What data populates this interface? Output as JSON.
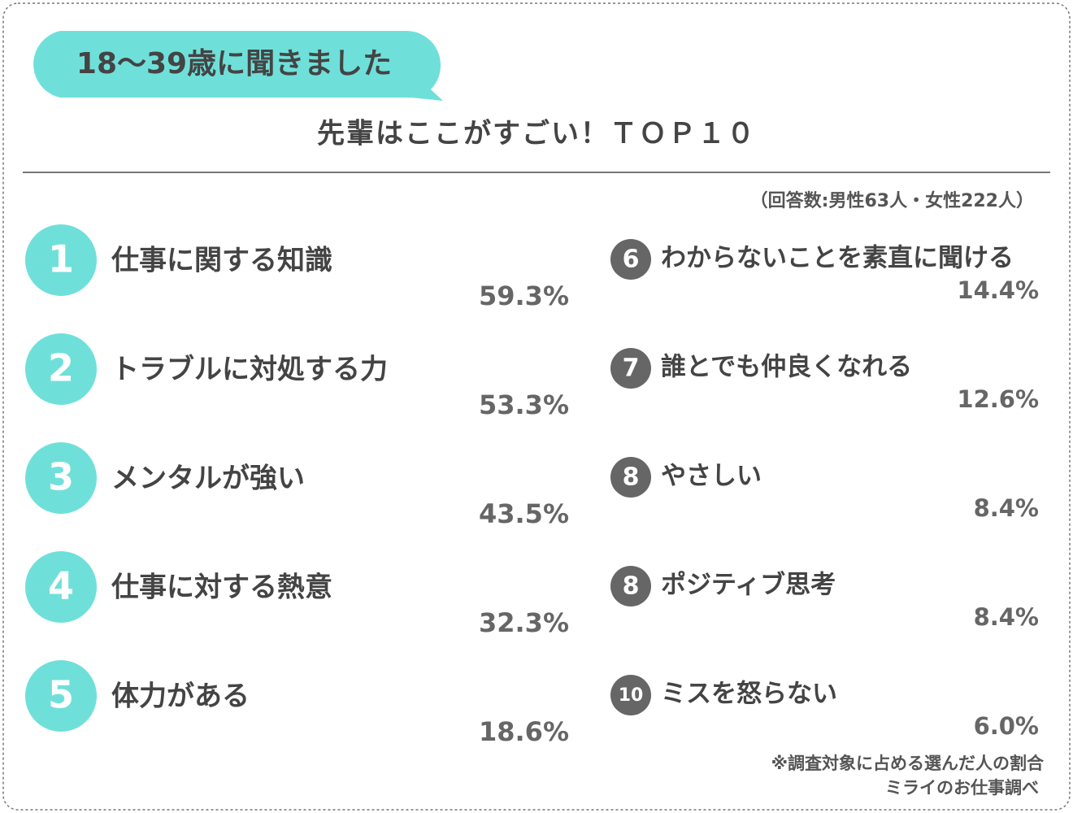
{
  "header": {
    "badge": "18〜39歳に聞きました",
    "title": "先輩はここがすごい！ＴＯＰ１０",
    "note": "（回答数:男性63人・女性222人）"
  },
  "left_items": [
    {
      "rank": 1,
      "label": "仕事に関する知識",
      "value": "59.3%"
    },
    {
      "rank": 2,
      "label": "トラブルに対処する力",
      "value": "53.3%"
    },
    {
      "rank": 3,
      "label": "メンタルが強い",
      "value": "43.5%"
    },
    {
      "rank": 4,
      "label": "仕事に対する熱意",
      "value": "32.3%"
    },
    {
      "rank": 5,
      "label": "体力がある",
      "value": "18.6%"
    }
  ],
  "right_items": [
    {
      "rank": 6,
      "label": "わからないことを素直に聞ける",
      "value": "14.4%"
    },
    {
      "rank": 7,
      "label": "誰とでも仲良くなれる",
      "value": "12.6%"
    },
    {
      "rank": 8,
      "label": "やさしい",
      "value": "8.4%"
    },
    {
      "rank": 8,
      "label": "ポジティブ思考",
      "value": "8.4%"
    },
    {
      "rank": 10,
      "label": "ミスを怒らない",
      "value": "6.0%"
    }
  ],
  "footer": {
    "note": "※調査対象に占める選んだ人の割合",
    "source": "ミライのお仕事調べ"
  }
}
